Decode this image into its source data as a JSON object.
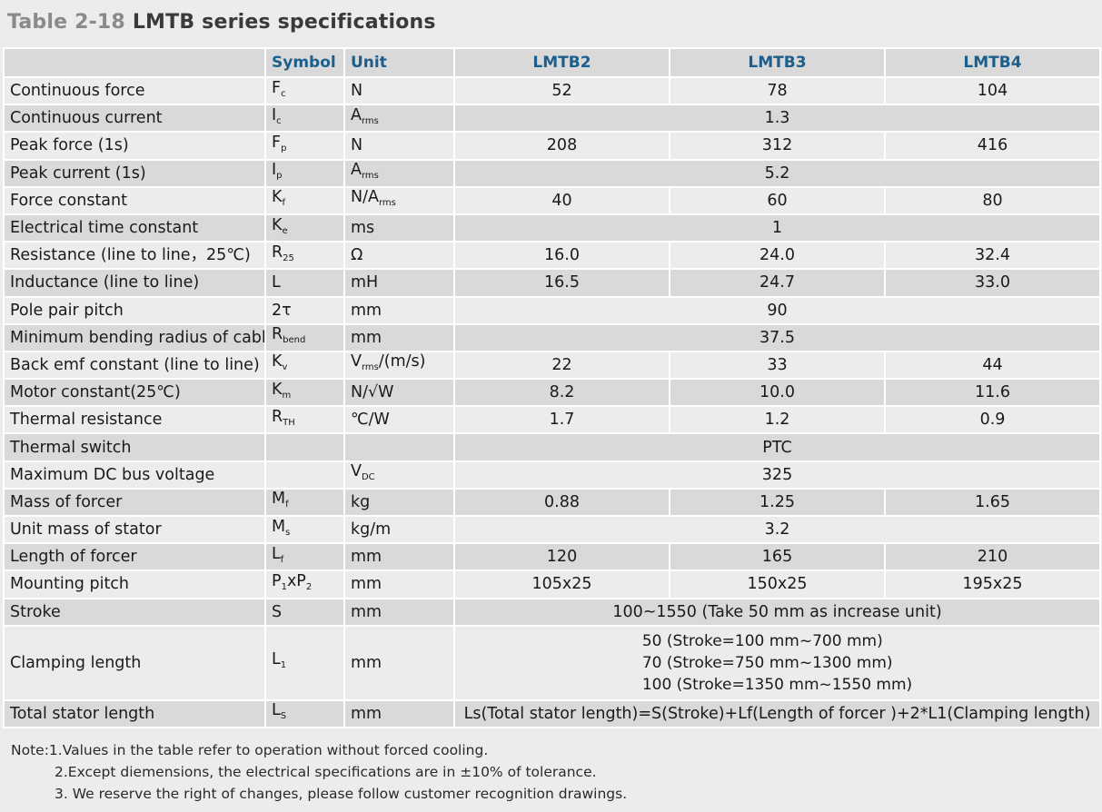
{
  "title": {
    "prefix": "Table 2-18",
    "name": "LMTB series specifications"
  },
  "header": {
    "symbol": "Symbol",
    "unit": "Unit",
    "models": [
      "LMTB2",
      "LMTB3",
      "LMTB4"
    ]
  },
  "rows": [
    {
      "param": "Continuous force",
      "sym": "F",
      "sym_sub": "c",
      "unit": "N",
      "unit_sub": "",
      "values": [
        "52",
        "78",
        "104"
      ]
    },
    {
      "param": "Continuous current",
      "sym": "I",
      "sym_sub": "c",
      "unit": "A",
      "unit_sub": "rms",
      "merged": "1.3"
    },
    {
      "param": "Peak force (1s)",
      "sym": "F",
      "sym_sub": "p",
      "unit": "N",
      "unit_sub": "",
      "values": [
        "208",
        "312",
        "416"
      ]
    },
    {
      "param": "Peak current (1s)",
      "sym": "I",
      "sym_sub": "p",
      "unit": "A",
      "unit_sub": "rms",
      "merged": "5.2"
    },
    {
      "param": "Force constant",
      "sym": "K",
      "sym_sub": "f",
      "unit": "N/A",
      "unit_sub": "rms",
      "values": [
        "40",
        "60",
        "80"
      ]
    },
    {
      "param": "Electrical time constant",
      "sym": "K",
      "sym_sub": "e",
      "unit": "ms",
      "unit_sub": "",
      "merged": "1"
    },
    {
      "param": "Resistance (line to line，25℃)",
      "sym": "R",
      "sym_sub": "25",
      "unit": "Ω",
      "unit_sub": "",
      "values": [
        "16.0",
        "24.0",
        "32.4"
      ]
    },
    {
      "param": "Inductance (line to line)",
      "sym": "L",
      "sym_sub": "",
      "unit": "mH",
      "unit_sub": "",
      "values": [
        "16.5",
        "24.7",
        "33.0"
      ]
    },
    {
      "param": "Pole pair pitch",
      "sym": "2τ",
      "sym_sub": "",
      "unit": "mm",
      "unit_sub": "",
      "merged": "90"
    },
    {
      "param": "Minimum bending radius of cable",
      "sym": "R",
      "sym_sub": "bend",
      "unit": "mm",
      "unit_sub": "",
      "merged": "37.5"
    },
    {
      "param": "Back emf constant (line to line)",
      "sym": "K",
      "sym_sub": "v",
      "unit": "V",
      "unit_sub": "rms",
      "unit_tail": "/(m/s)",
      "values": [
        "22",
        "33",
        "44"
      ]
    },
    {
      "param": "Motor constant(25℃)",
      "sym": "K",
      "sym_sub": "m",
      "unit": "N/√W",
      "unit_sub": "",
      "values": [
        "8.2",
        "10.0",
        "11.6"
      ]
    },
    {
      "param": "Thermal resistance",
      "sym": "R",
      "sym_sub": "TH",
      "unit": "℃/W",
      "unit_sub": "",
      "values": [
        "1.7",
        "1.2",
        "0.9"
      ]
    },
    {
      "param": "Thermal switch",
      "sym": "",
      "sym_sub": "",
      "unit": "",
      "unit_sub": "",
      "merged": "PTC"
    },
    {
      "param": "Maximum DC bus voltage",
      "sym": "",
      "sym_sub": "",
      "unit": "V",
      "unit_sub": "DC",
      "merged": "325"
    },
    {
      "param": "Mass of forcer",
      "sym": "M",
      "sym_sub": "f",
      "unit": "kg",
      "unit_sub": "",
      "values": [
        "0.88",
        "1.25",
        "1.65"
      ]
    },
    {
      "param": "Unit mass of stator",
      "sym": "M",
      "sym_sub": "s",
      "unit": "kg/m",
      "unit_sub": "",
      "merged": "3.2"
    },
    {
      "param": "Length of forcer",
      "sym": "L",
      "sym_sub": "f",
      "unit": "mm",
      "unit_sub": "",
      "values": [
        "120",
        "165",
        "210"
      ]
    },
    {
      "param": "Mounting pitch",
      "sym": "P",
      "sym_sub": "1",
      "sym_tail": "xP",
      "sym_sub2": "2",
      "unit": "mm",
      "unit_sub": "",
      "values": [
        "105x25",
        "150x25",
        "195x25"
      ]
    },
    {
      "param": "Stroke",
      "sym": "S",
      "sym_sub": "",
      "unit": "mm",
      "unit_sub": "",
      "merged": "100~1550 (Take 50 mm as increase unit)"
    }
  ],
  "clamping": {
    "param": "Clamping length",
    "sym": "L",
    "sym_sub": "1",
    "unit": "mm",
    "lines": [
      "50 (Stroke=100 mm~700 mm)",
      "70 (Stroke=750 mm~1300 mm)",
      "100 (Stroke=1350 mm~1550 mm)"
    ]
  },
  "total": {
    "param": "Total stator length",
    "sym": "L",
    "sym_sub": "S",
    "unit": "mm",
    "formula": "Ls(Total stator length)=S(Stroke)+Lf(Length of forcer )+2*L1(Clamping length)"
  },
  "notes": [
    "Note:1.Values in the table refer to operation without forced cooling.",
    "2.Except diemensions, the electrical specifications are in ±10% of tolerance.",
    "3. We reserve the right of changes, please follow customer recognition drawings."
  ]
}
